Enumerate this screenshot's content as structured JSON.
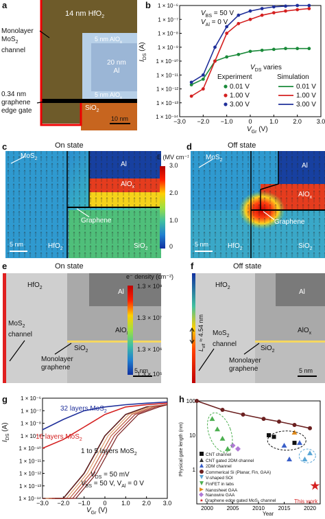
{
  "panels": {
    "a": {
      "letter": "a",
      "hfo2": "14 nm HfO",
      "monolayer_line1": "Monolayer",
      "monolayer_line2": "MoS",
      "monolayer_line3": "channel",
      "aloxTop": "5 nm AlO",
      "al_line1": "20 nm",
      "al_line2": "Al",
      "aloxBot": "5 nm AlO",
      "gate_line1": "0.34 nm",
      "gate_line2": "graphene",
      "gate_line3": "edge gate",
      "sio2": "SiO",
      "scale": "10 nm"
    },
    "b": {
      "letter": "b",
      "vbs": "V",
      "vbs_rest": " = 50 V",
      "val_rest": " = 0 V",
      "vds_varies": " varies",
      "experiment": "Experiment",
      "simulation": "Simulation",
      "ylabel": "I",
      "xlabel": "V",
      "xticks": [
        "−3.0",
        "−2.0",
        "−1.0",
        "0",
        "1.0",
        "2.0",
        "3.0"
      ],
      "yticks": [
        "1 × 10⁻⁶",
        "1 × 10⁻⁷",
        "1 × 10⁻⁸",
        "1 × 10⁻⁹",
        "1 × 10⁻¹⁰",
        "1 × 10⁻¹¹",
        "1 × 10⁻¹²",
        "1 × 10⁻¹³",
        "1 × 10⁻¹⁴"
      ],
      "legend": [
        {
          "v": "0.01 V",
          "color": "#1a8a3a"
        },
        {
          "v": "1.00 V",
          "color": "#d42020"
        },
        {
          "v": "3.00 V",
          "color": "#1f2f9a"
        }
      ]
    },
    "c": {
      "letter": "c",
      "title": "On state",
      "mos2": "MoS",
      "al": "Al",
      "alox": "AlO",
      "graphene": "Graphene",
      "scale": "5 nm",
      "hfo2": "HfO",
      "sio2": "SiO"
    },
    "colorbarE": {
      "label": "E (MV cm⁻¹)",
      "ticks": [
        "3.0",
        "2.0",
        "1.0",
        "0"
      ]
    },
    "d": {
      "letter": "d",
      "title": "Off state",
      "mos2": "MoS",
      "al": "Al",
      "alox": "AlO",
      "graphene": "Graphene",
      "scale": "5 nm",
      "hfo2": "HfO",
      "sio2": "SiO"
    },
    "e": {
      "letter": "e",
      "title": "On state",
      "hfo2": "HfO",
      "al": "Al",
      "alox": "AlO",
      "mos2_line1": "MoS",
      "mos2_line2": "channel",
      "sio2": "SiO",
      "mono_line1": "Monolayer",
      "mono_line2": "graphene",
      "scale": "5 nm"
    },
    "colorbarN": {
      "label": "e⁻ density (cm⁻²)",
      "ticks": [
        "1.3 × 10⁸",
        "1.3 × 10⁷",
        "1.3 × 10⁶",
        "1.3 × 10⁵"
      ]
    },
    "f": {
      "letter": "f",
      "title": "Off state",
      "hfo2": "HfO",
      "al": "Al",
      "alox": "AlO",
      "mos2_line1": "MoS",
      "mos2_line2": "channel",
      "sio2": "SiO",
      "mono_line1": "Monolayer",
      "mono_line2": "graphene",
      "scale": "5 nm",
      "leff": "L",
      "leff_rest": " ≈ 4.54 nm"
    },
    "g": {
      "letter": "g",
      "layers32": "32 layers MoS",
      "layers16": "16 layers MoS",
      "layers1to5": "1 to 5 layers MoS",
      "vds": "V",
      "vds_rest": " = 50 mV",
      "vbs_rest": " = 50 V, V",
      "val_rest": " = 0 V",
      "ylabel": "I",
      "xlabel": "V",
      "xticks": [
        "−3.0",
        "−2.0",
        "−1.0",
        "0",
        "1.0",
        "2.0",
        "3.0"
      ],
      "yticks": [
        "1 × 10⁻⁶",
        "1 × 10⁻⁷",
        "1 × 10⁻⁸",
        "1 × 10⁻⁹",
        "1 × 10⁻¹⁰",
        "1 × 10⁻¹¹",
        "1 × 10⁻¹²",
        "1 × 10⁻¹³",
        "1 × 10⁻¹⁴"
      ]
    },
    "h": {
      "letter": "h",
      "ylabel": "Physical gate length (nm)",
      "xlabel": "Year",
      "yticks": [
        "100",
        "10",
        "1"
      ],
      "xticks": [
        "2000",
        "2005",
        "2010",
        "2015",
        "2020"
      ],
      "this_work": "This work",
      "legend": [
        {
          "label": "CNT channel",
          "color": "#111111",
          "shape": "square"
        },
        {
          "label": "CNT gated 2DM channel",
          "color": "#333333",
          "shape": "triangle"
        },
        {
          "label": "2DM channel",
          "color": "#3a5fc8",
          "shape": "triangle"
        },
        {
          "label": "Commerical Si (Planar, Fin, GAA)",
          "color": "#6b2020",
          "shape": "circle"
        },
        {
          "label": "V-shaped SOI",
          "color": "#5aa6d6",
          "shape": "triangle"
        },
        {
          "label": "FinFET in labs",
          "color": "#4caf50",
          "shape": "triangle"
        },
        {
          "label": "Nanosheet GAA",
          "color": "#e08a1c",
          "shape": "triangle"
        },
        {
          "label": "Nanowire GAA",
          "color": "#b07ad6",
          "shape": "diamond"
        },
        {
          "label": "Graphene edge gated MoS₂ channel",
          "color": "#d42020",
          "shape": "star"
        }
      ]
    }
  },
  "chart_data": [
    {
      "type": "line",
      "panel": "b",
      "xlabel": "V_Gr (V)",
      "ylabel": "I_DS (A)",
      "xlim": [
        -3.0,
        3.0
      ],
      "ylim": [
        1e-14,
        1e-06
      ],
      "yscale": "log",
      "x": [
        -2.5,
        -2.0,
        -1.5,
        -1.0,
        -0.5,
        0.0,
        0.5,
        1.0,
        1.5,
        2.0,
        2.5
      ],
      "series": [
        {
          "name": "0.01 V",
          "values": [
            2e-12,
            5e-12,
            1e-10,
            2e-10,
            3e-10,
            5e-10,
            6e-10,
            7e-10,
            8e-10,
            8e-10,
            8e-10
          ]
        },
        {
          "name": "1.00 V",
          "values": [
            3e-13,
            1e-12,
            1e-10,
            1e-08,
            5e-08,
            1e-07,
            2e-07,
            3e-07,
            4e-07,
            5e-07,
            6e-07
          ]
        },
        {
          "name": "3.00 V",
          "values": [
            3e-12,
            1e-11,
            1e-09,
            3e-08,
            2e-07,
            4e-07,
            6e-07,
            8e-07,
            9e-07,
            1e-06,
            1e-06
          ]
        }
      ]
    },
    {
      "type": "line",
      "panel": "g",
      "xlabel": "V_Gr (V)",
      "ylabel": "I_DS (A)",
      "xlim": [
        -3.0,
        3.0
      ],
      "ylim": [
        1e-14,
        1e-06
      ],
      "yscale": "log",
      "x": [
        -3.0,
        -2.0,
        -1.0,
        0.0,
        1.0,
        2.0,
        3.0
      ],
      "series": [
        {
          "name": "32 layers MoS2",
          "values": [
            3e-09,
            2e-08,
            1e-07,
            2e-07,
            3e-07,
            4e-07,
            5e-07
          ]
        },
        {
          "name": "16 layers MoS2",
          "values": [
            1e-10,
            5e-10,
            5e-09,
            5e-08,
            2e-07,
            3e-07,
            4e-07
          ]
        },
        {
          "name": "1 to 5 layers MoS2",
          "values": [
            1e-14,
            1e-14,
            1e-12,
            1e-09,
            5e-08,
            2e-07,
            3e-07
          ]
        }
      ]
    },
    {
      "type": "scatter",
      "panel": "h",
      "xlabel": "Year",
      "ylabel": "Physical gate length (nm)",
      "yscale": "log",
      "xlim": [
        1998,
        2022
      ],
      "ylim": [
        0.1,
        100
      ],
      "series": [
        {
          "name": "Commerical Si (Planar, Fin, GAA)",
          "x": [
            1998,
            2003,
            2007,
            2011,
            2014,
            2017,
            2020
          ],
          "y": [
            100,
            55,
            40,
            30,
            25,
            20,
            16
          ]
        },
        {
          "name": "FinFET in labs",
          "x": [
            2001,
            2002,
            2003,
            2004
          ],
          "y": [
            30,
            15,
            8,
            4
          ]
        },
        {
          "name": "Nanowire GAA",
          "x": [
            2005,
            2006
          ],
          "y": [
            5,
            4
          ]
        },
        {
          "name": "CNT channel",
          "x": [
            2012,
            2013,
            2017
          ],
          "y": [
            10,
            9,
            6
          ]
        },
        {
          "name": "2DM channel",
          "x": [
            2015,
            2016,
            2018
          ],
          "y": [
            5,
            2,
            6
          ]
        },
        {
          "name": "Nanosheet GAA",
          "x": [
            2017
          ],
          "y": [
            12
          ]
        },
        {
          "name": "V-shaped SOI",
          "x": [
            2019,
            2020
          ],
          "y": [
            2,
            3
          ]
        },
        {
          "name": "Graphene edge gated MoS₂ channel",
          "x": [
            2021
          ],
          "y": [
            0.34
          ]
        }
      ]
    }
  ]
}
